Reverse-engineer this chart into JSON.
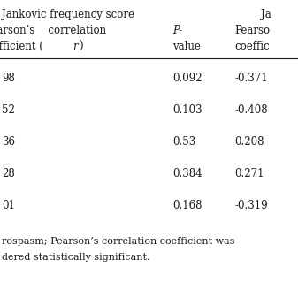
{
  "header_row1_left": "Jankovic frequency score",
  "header_row1_right": "Ja",
  "header_row2_left": "Pearson’s    correlation",
  "header_row2_mid": "P-",
  "header_row2_right": "Pearso",
  "header_row3_left": "fficient (r)",
  "header_row3_mid": "value",
  "header_row3_right": "coeffic",
  "rows": [
    [
      "98",
      "0.092",
      "-0.371"
    ],
    [
      "52",
      "0.103",
      "-0.408"
    ],
    [
      "36",
      "0.53",
      "0.208"
    ],
    [
      "28",
      "0.384",
      "0.271"
    ],
    [
      "01",
      "0.168",
      "-0.319"
    ]
  ],
  "footnote1": "rospasm; Pearson’s correlation coefficient was",
  "footnote2": "dered statistically significant.",
  "bg_color": "#ffffff",
  "text_color": "#1a1a1a",
  "font_size": 8.5
}
